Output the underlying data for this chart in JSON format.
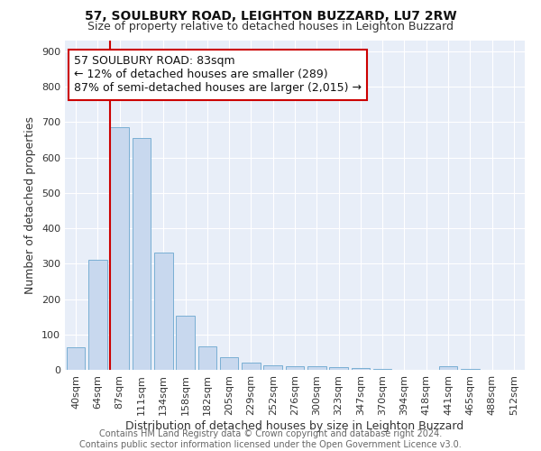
{
  "title": "57, SOULBURY ROAD, LEIGHTON BUZZARD, LU7 2RW",
  "subtitle": "Size of property relative to detached houses in Leighton Buzzard",
  "xlabel": "Distribution of detached houses by size in Leighton Buzzard",
  "ylabel": "Number of detached properties",
  "bar_color": "#c8d8ee",
  "bar_edge_color": "#7aafd4",
  "bar_categories": [
    "40sqm",
    "64sqm",
    "87sqm",
    "111sqm",
    "134sqm",
    "158sqm",
    "182sqm",
    "205sqm",
    "229sqm",
    "252sqm",
    "276sqm",
    "300sqm",
    "323sqm",
    "347sqm",
    "370sqm",
    "394sqm",
    "418sqm",
    "441sqm",
    "465sqm",
    "488sqm",
    "512sqm"
  ],
  "bar_values": [
    63,
    310,
    685,
    655,
    330,
    153,
    65,
    35,
    20,
    13,
    10,
    10,
    8,
    5,
    2,
    1,
    1,
    10,
    2,
    1,
    1
  ],
  "ylim": [
    0,
    930
  ],
  "yticks": [
    0,
    100,
    200,
    300,
    400,
    500,
    600,
    700,
    800,
    900
  ],
  "property_bar_index": 2,
  "vline_color": "#cc0000",
  "annotation_line1": "57 SOULBURY ROAD: 83sqm",
  "annotation_line2": "← 12% of detached houses are smaller (289)",
  "annotation_line3": "87% of semi-detached houses are larger (2,015) →",
  "annotation_box_color": "#ffffff",
  "annotation_box_edge": "#cc0000",
  "footer_text": "Contains HM Land Registry data © Crown copyright and database right 2024.\nContains public sector information licensed under the Open Government Licence v3.0.",
  "background_color": "#e8eef8",
  "grid_color": "#ffffff",
  "figure_bg": "#ffffff",
  "title_fontsize": 10,
  "subtitle_fontsize": 9,
  "axis_label_fontsize": 9,
  "tick_fontsize": 8,
  "annotation_fontsize": 9,
  "footer_fontsize": 7
}
